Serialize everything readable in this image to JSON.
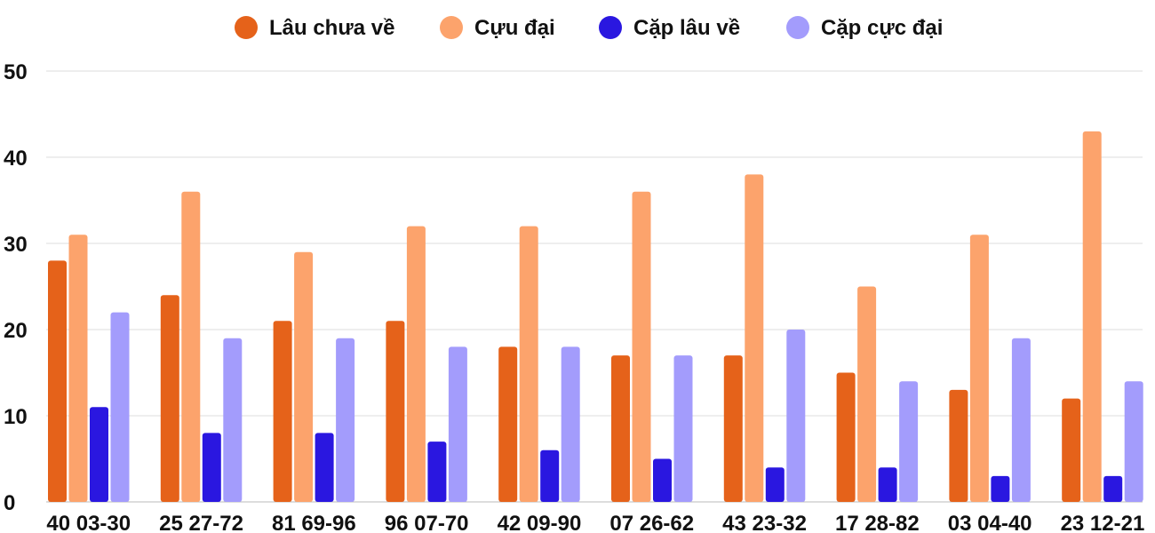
{
  "chart_data": {
    "type": "bar",
    "categories": [
      "40 03-30",
      "25 27-72",
      "81 69-96",
      "96 07-70",
      "42 09-90",
      "07 26-62",
      "43 23-32",
      "17 28-82",
      "03 04-40",
      "23 12-21"
    ],
    "series": [
      {
        "name": "Lâu chưa về",
        "color": "#e5621a",
        "values": [
          28,
          24,
          21,
          21,
          18,
          17,
          17,
          15,
          13,
          12
        ]
      },
      {
        "name": "Cựu đại",
        "color": "#fca36c",
        "values": [
          31,
          36,
          29,
          32,
          32,
          36,
          38,
          25,
          31,
          43
        ]
      },
      {
        "name": "Cặp lâu về",
        "color": "#2a17e0",
        "values": [
          11,
          8,
          8,
          7,
          6,
          5,
          4,
          4,
          3,
          3
        ]
      },
      {
        "name": "Cặp cực đại",
        "color": "#a39cfc",
        "values": [
          22,
          19,
          19,
          18,
          18,
          17,
          20,
          14,
          19,
          14
        ]
      }
    ],
    "yticks": [
      "0",
      "10",
      "20",
      "30",
      "40",
      "50"
    ],
    "ylim": [
      0,
      50
    ],
    "grid": true,
    "legend": "top-center"
  }
}
